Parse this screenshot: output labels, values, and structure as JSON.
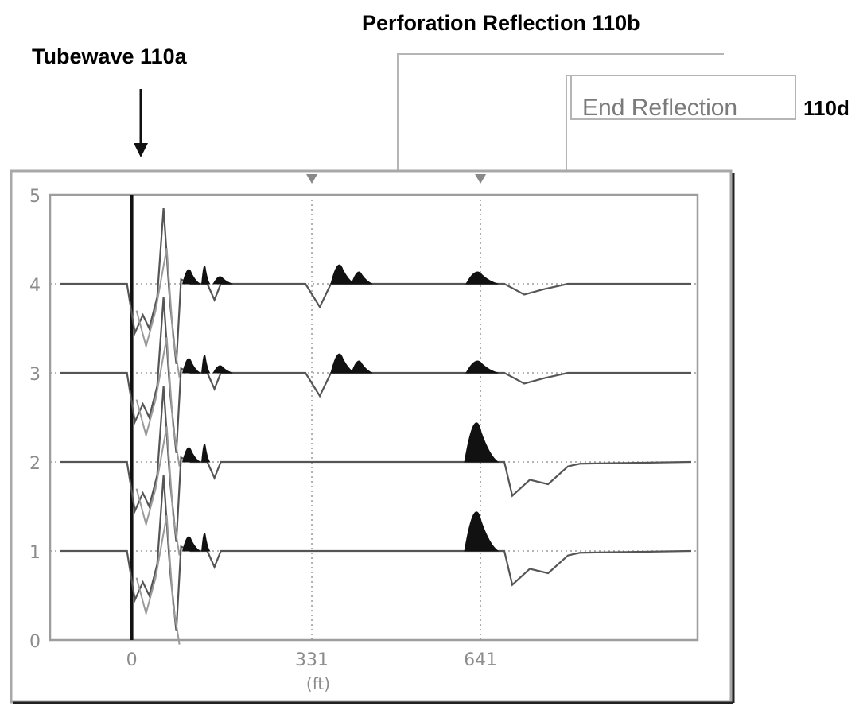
{
  "annotations": {
    "tubewave": "Tubewave 110a",
    "perforation": "Perforation Reflection 110b",
    "end_reflection": "End Reflection",
    "end_reflection_ref": "110d"
  },
  "chart_data": {
    "type": "line",
    "title": "",
    "xlabel": "(ft)",
    "ylabel": "",
    "x_ticks": [
      0,
      331,
      641
    ],
    "x_tick_labels": [
      "0",
      "331",
      "641"
    ],
    "y_ticks": [
      0,
      1,
      2,
      3,
      4,
      5
    ],
    "y_tick_labels": [
      "0",
      "1",
      "2",
      "3",
      "4",
      "5"
    ],
    "xlim": [
      -150,
      1040
    ],
    "ylim": [
      0,
      5
    ],
    "grid": true,
    "traces": [
      {
        "baseline": 4,
        "features": [
          {
            "type": "tubewave",
            "x": 0
          },
          {
            "type": "perforation-reflection",
            "x": 331
          },
          {
            "type": "end-reflection",
            "x": 641
          }
        ]
      },
      {
        "baseline": 3,
        "features": [
          {
            "type": "tubewave",
            "x": 0
          },
          {
            "type": "perforation-reflection",
            "x": 331
          },
          {
            "type": "end-reflection",
            "x": 641
          }
        ]
      },
      {
        "baseline": 2,
        "features": [
          {
            "type": "tubewave",
            "x": 0
          },
          {
            "type": "end-reflection",
            "x": 641
          }
        ]
      },
      {
        "baseline": 1,
        "features": [
          {
            "type": "tubewave",
            "x": 0
          },
          {
            "type": "end-reflection",
            "x": 641
          }
        ]
      }
    ]
  }
}
